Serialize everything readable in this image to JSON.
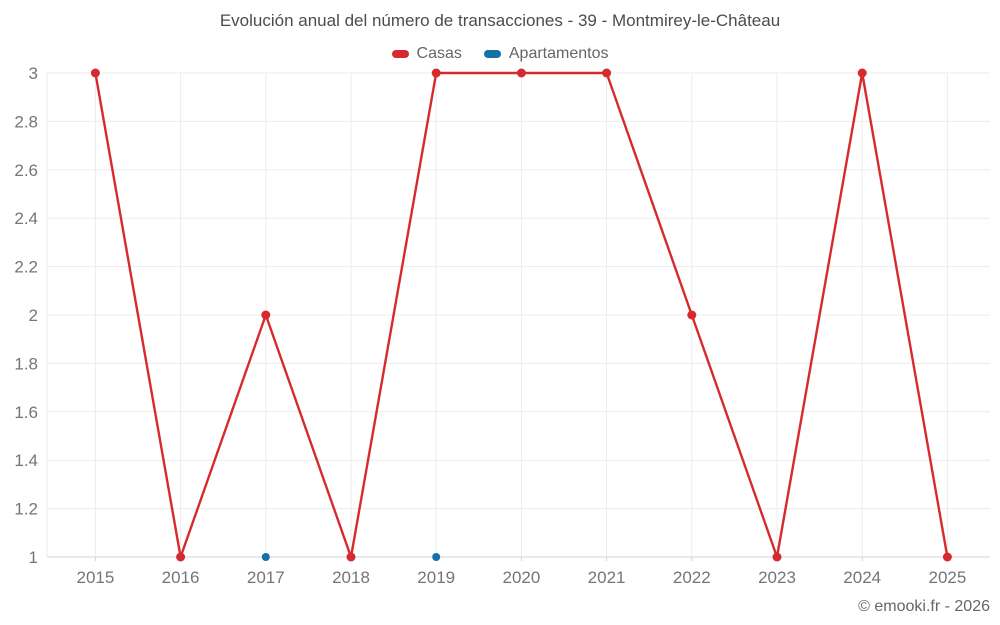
{
  "copyright": "© emooki.fr - 2026",
  "colors": {
    "grid": "#ececec",
    "axis_line": "#d3d3d3",
    "tick_text": "#757575",
    "title_text": "#4c4c4c",
    "legend_text": "#666666",
    "copyright_text": "#666666",
    "background": "#ffffff"
  },
  "chart_data": {
    "type": "line",
    "title": "Evolución anual del número de transacciones - 39 - Montmirey-le-Château",
    "categories": [
      "2015",
      "2016",
      "2017",
      "2018",
      "2019",
      "2020",
      "2021",
      "2022",
      "2023",
      "2024",
      "2025"
    ],
    "series": [
      {
        "name": "Casas",
        "color": "#d62b2e",
        "values": [
          3,
          1,
          2,
          1,
          3,
          3,
          3,
          2,
          1,
          3,
          1
        ]
      },
      {
        "name": "Apartamentos",
        "color": "#1571a5",
        "values": [
          null,
          null,
          1,
          null,
          1,
          null,
          null,
          null,
          null,
          null,
          null
        ]
      }
    ],
    "xlabel": "",
    "ylabel": "",
    "ylim": [
      1,
      3
    ],
    "ytick_step": 0.2,
    "grid": true,
    "legend_position": "top"
  }
}
